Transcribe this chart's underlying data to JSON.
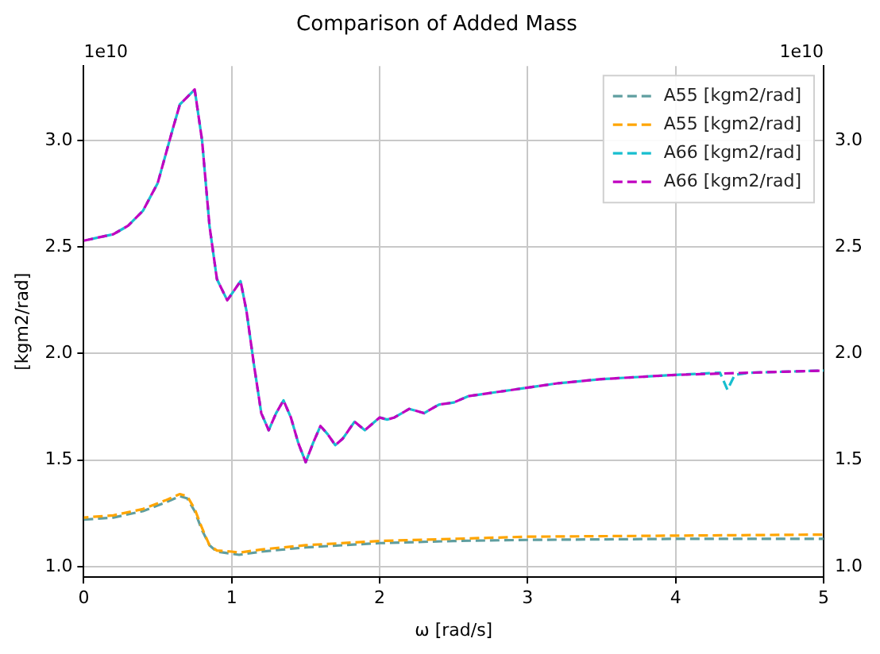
{
  "chart_data": {
    "type": "line",
    "title": "Comparison of Added Mass",
    "xlabel": "ω [rad/s]",
    "ylabel": "[kgm2/rad]",
    "annotations": [
      "1e10",
      "1e10"
    ],
    "line_style": "dashed",
    "marker": "none",
    "grid": true,
    "legend": "top right",
    "xlim": [
      0,
      5
    ],
    "xticks": [
      0,
      1,
      2,
      3,
      4,
      5
    ],
    "ylim": [
      0.95,
      3.35
    ],
    "yticks": [
      {
        "value": 1,
        "label": "1.0"
      },
      {
        "value": 1.5,
        "label": "1.5"
      },
      {
        "value": 2,
        "label": "2.0"
      },
      {
        "value": 2.5,
        "label": "2.5"
      },
      {
        "value": 3,
        "label": "3.0"
      }
    ],
    "y2lim": [
      0.95,
      3.35
    ],
    "y2ticks": [
      {
        "value": 1,
        "label": "1.0"
      },
      {
        "value": 1.5,
        "label": "1.5"
      },
      {
        "value": 2,
        "label": "2.0"
      },
      {
        "value": 2.5,
        "label": "2.5"
      },
      {
        "value": 3,
        "label": "3.0"
      }
    ],
    "x": [
      0,
      0.2,
      0.4,
      0.55,
      0.65,
      0.7,
      0.75,
      0.8,
      0.85,
      0.9,
      1.0,
      1.05,
      1.2,
      1.5,
      2.0,
      2.5,
      3.0,
      4.0,
      5.0
    ],
    "series": [
      {
        "name": "A55 [kgm2/rad]",
        "color": "#5f9ea0",
        "values": [
          1.22,
          1.23,
          1.26,
          1.3,
          1.33,
          1.32,
          1.26,
          1.17,
          1.1,
          1.07,
          1.06,
          1.055,
          1.07,
          1.09,
          1.11,
          1.12,
          1.125,
          1.13,
          1.13
        ]
      },
      {
        "name": "A55 [kgm2/rad]",
        "color": "#ffa500",
        "values": [
          1.23,
          1.24,
          1.27,
          1.31,
          1.34,
          1.33,
          1.27,
          1.18,
          1.1,
          1.075,
          1.07,
          1.065,
          1.08,
          1.1,
          1.12,
          1.13,
          1.14,
          1.145,
          1.15
        ]
      },
      {
        "name": "A66 [kgm2/rad]",
        "color": "#17becf",
        "x": [
          0,
          0.2,
          0.3,
          0.4,
          0.5,
          0.6,
          0.65,
          0.75,
          0.8,
          0.85,
          0.9,
          0.97,
          1.0,
          1.06,
          1.1,
          1.15,
          1.2,
          1.25,
          1.3,
          1.35,
          1.4,
          1.45,
          1.5,
          1.55,
          1.6,
          1.65,
          1.7,
          1.75,
          1.83,
          1.9,
          1.95,
          2.0,
          2.05,
          2.1,
          2.2,
          2.3,
          2.4,
          2.5,
          2.6,
          2.8,
          3.0,
          3.2,
          3.5,
          4.0,
          4.3,
          4.35,
          4.4,
          4.5,
          5.0
        ],
        "values": [
          2.53,
          2.56,
          2.6,
          2.67,
          2.8,
          3.05,
          3.17,
          3.24,
          3.0,
          2.6,
          2.35,
          2.25,
          2.28,
          2.34,
          2.2,
          1.95,
          1.72,
          1.64,
          1.72,
          1.78,
          1.7,
          1.58,
          1.49,
          1.58,
          1.66,
          1.62,
          1.57,
          1.6,
          1.68,
          1.64,
          1.67,
          1.7,
          1.69,
          1.7,
          1.74,
          1.72,
          1.76,
          1.77,
          1.8,
          1.82,
          1.84,
          1.86,
          1.88,
          1.9,
          1.91,
          1.83,
          1.9,
          1.91,
          1.92
        ]
      },
      {
        "name": "A66 [kgm2/rad]",
        "color": "#c000c0",
        "x": [
          0,
          0.2,
          0.3,
          0.4,
          0.5,
          0.6,
          0.65,
          0.75,
          0.8,
          0.85,
          0.9,
          0.97,
          1.0,
          1.06,
          1.1,
          1.15,
          1.2,
          1.25,
          1.3,
          1.35,
          1.4,
          1.45,
          1.5,
          1.55,
          1.6,
          1.65,
          1.7,
          1.75,
          1.83,
          1.9,
          1.95,
          2.0,
          2.05,
          2.1,
          2.2,
          2.3,
          2.4,
          2.5,
          2.6,
          2.8,
          3.0,
          3.2,
          3.5,
          4.0,
          4.5,
          5.0
        ],
        "values": [
          2.53,
          2.56,
          2.6,
          2.67,
          2.8,
          3.05,
          3.17,
          3.24,
          3.0,
          2.6,
          2.35,
          2.25,
          2.28,
          2.34,
          2.2,
          1.95,
          1.72,
          1.64,
          1.72,
          1.78,
          1.7,
          1.58,
          1.49,
          1.58,
          1.66,
          1.62,
          1.57,
          1.6,
          1.68,
          1.64,
          1.67,
          1.7,
          1.69,
          1.7,
          1.74,
          1.72,
          1.76,
          1.77,
          1.8,
          1.82,
          1.84,
          1.86,
          1.88,
          1.9,
          1.91,
          1.92
        ]
      }
    ]
  }
}
